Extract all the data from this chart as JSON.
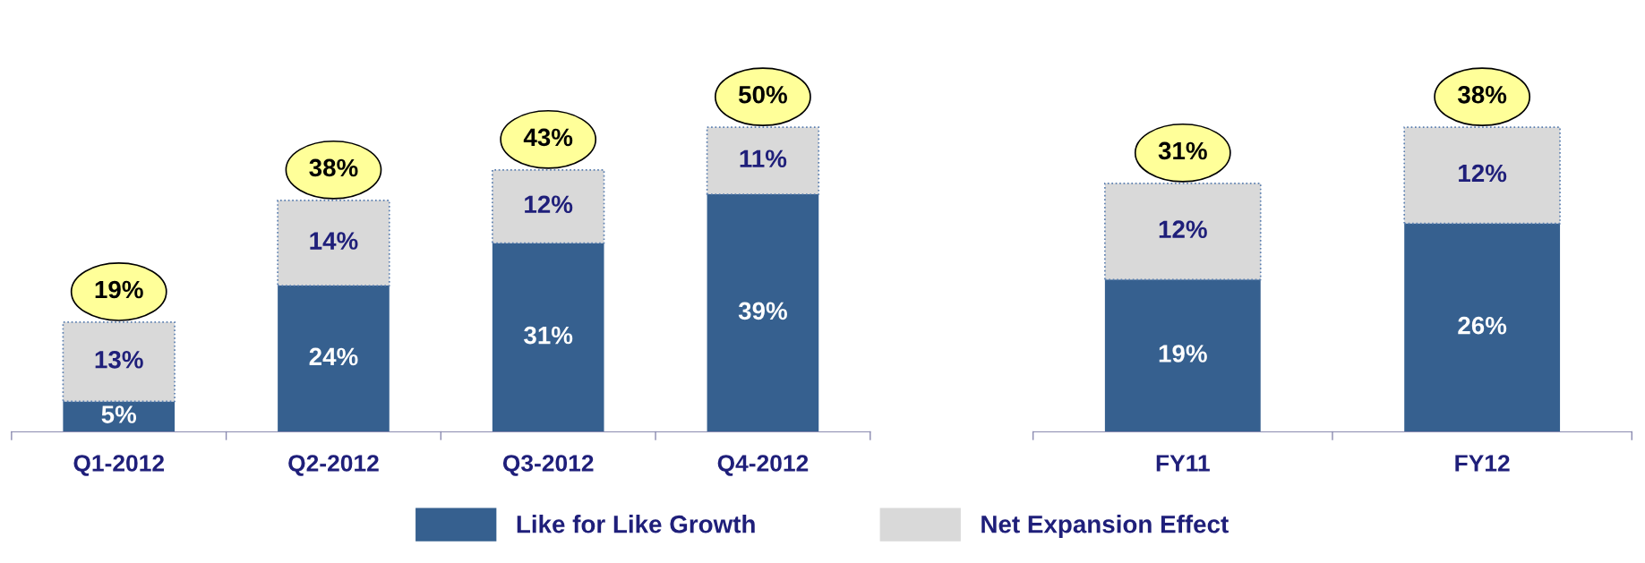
{
  "chart_data": [
    {
      "type": "bar",
      "stacked": true,
      "legend": "bottom",
      "categories": [
        "Q1-2012",
        "Q2-2012",
        "Q3-2012",
        "Q4-2012"
      ],
      "series": [
        {
          "name": "Like for Like Growth",
          "color": "#36608f",
          "values": [
            5,
            24,
            31,
            39
          ],
          "value_labels": [
            "5%",
            "24%",
            "31%",
            "39%"
          ]
        },
        {
          "name": "Net Expansion Effect",
          "color": "#d9d9d9",
          "values": [
            13,
            14,
            12,
            11
          ],
          "value_labels": [
            "13%",
            "14%",
            "12%",
            "11%"
          ]
        }
      ],
      "totals": [
        "19%",
        "38%",
        "43%",
        "50%"
      ]
    },
    {
      "type": "bar",
      "stacked": true,
      "categories": [
        "FY11",
        "FY12"
      ],
      "series": [
        {
          "name": "Like for Like Growth",
          "color": "#36608f",
          "values": [
            19,
            26
          ],
          "value_labels": [
            "19%",
            "26%"
          ]
        },
        {
          "name": "Net Expansion Effect",
          "color": "#d9d9d9",
          "values": [
            12,
            12
          ],
          "value_labels": [
            "12%",
            "12%"
          ]
        }
      ],
      "totals": [
        "31%",
        "38%"
      ]
    }
  ]
}
